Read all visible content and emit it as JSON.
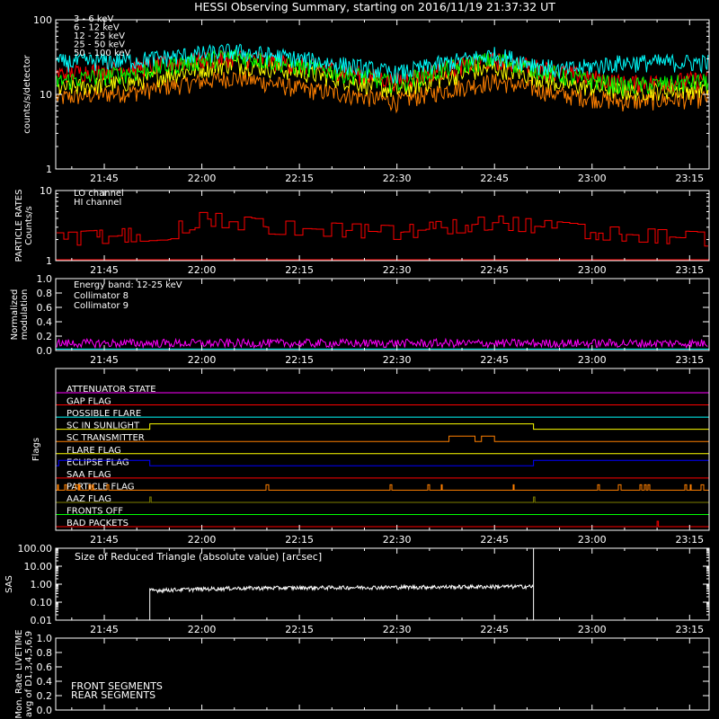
{
  "title": "HESSI Observing Summary, starting on 2016/11/19 21:37:32 UT",
  "time_ticks": [
    "21:45",
    "22:00",
    "22:15",
    "22:30",
    "22:45",
    "23:00",
    "23:15"
  ],
  "colors": {
    "bg": "#000000",
    "axis": "#ffffff"
  },
  "chart_data": [
    {
      "type": "line",
      "panel": "count-rates",
      "ylabel": "counts/s/detector",
      "yscale": "log",
      "ylim": [
        1,
        100
      ],
      "ytick_labels": [
        "1",
        "10",
        "100"
      ],
      "time_range": [
        "21:37:32",
        "23:18"
      ],
      "series": [
        {
          "name": "3 - 6 keV",
          "color": "#ff0000",
          "times": [
            "21:38",
            "21:50",
            "22:05",
            "22:15",
            "22:30",
            "22:45",
            "22:55",
            "23:05",
            "23:18"
          ],
          "values": [
            19,
            23,
            32,
            25,
            15,
            29,
            20,
            14,
            16
          ]
        },
        {
          "name": "6 - 12 keV",
          "color": "#ff8000",
          "times": [
            "21:38",
            "21:50",
            "22:05",
            "22:15",
            "22:30",
            "22:45",
            "22:55",
            "23:05",
            "23:18"
          ],
          "values": [
            9,
            11,
            17,
            12,
            8,
            15,
            10,
            8,
            9
          ]
        },
        {
          "name": "12 - 25 keV",
          "color": "#ffff00",
          "times": [
            "21:38",
            "21:50",
            "22:05",
            "22:15",
            "22:30",
            "22:45",
            "22:55",
            "23:05",
            "23:18"
          ],
          "values": [
            12,
            15,
            26,
            20,
            11,
            23,
            14,
            11,
            12
          ]
        },
        {
          "name": "25 - 50 keV",
          "color": "#00ff00",
          "times": [
            "21:38",
            "21:50",
            "22:05",
            "22:15",
            "22:30",
            "22:45",
            "22:55",
            "23:05",
            "23:18"
          ],
          "values": [
            15,
            20,
            33,
            24,
            14,
            30,
            18,
            13,
            15
          ]
        },
        {
          "name": "50 - 100 keV",
          "color": "#00ffff",
          "times": [
            "21:38",
            "21:50",
            "22:05",
            "22:15",
            "22:30",
            "22:45",
            "22:55",
            "23:05",
            "23:18"
          ],
          "values": [
            27,
            29,
            38,
            30,
            19,
            34,
            21,
            27,
            27
          ]
        }
      ]
    },
    {
      "type": "line",
      "panel": "particle-rates",
      "ylabel_lines": [
        "PARTICLE RATES",
        "Counts/s"
      ],
      "yscale": "log",
      "ylim": [
        1,
        10
      ],
      "ytick_labels": [
        "1",
        "10"
      ],
      "series": [
        {
          "name": "LO channel",
          "color": "#ff0000",
          "times": [
            "21:38",
            "21:55",
            "22:00",
            "22:10",
            "22:30",
            "22:45",
            "23:00",
            "23:18"
          ],
          "values": [
            2,
            2.5,
            4,
            3,
            2.5,
            3.5,
            2.5,
            2
          ]
        },
        {
          "name": "HI channel",
          "color": "#ff0000",
          "times": [
            "21:38",
            "23:18"
          ],
          "values": [
            1,
            1
          ]
        }
      ]
    },
    {
      "type": "line",
      "panel": "modulation",
      "ylabel_lines": [
        "Normalized",
        "modulation"
      ],
      "ylim": [
        0,
        1
      ],
      "ytick_labels": [
        "0.0",
        "0.2",
        "0.4",
        "0.6",
        "0.8",
        "1.0"
      ],
      "band_label": "Energy band: 12-25 keV",
      "series": [
        {
          "name": "Collimator 8",
          "color": "#00ffff",
          "times": [
            "21:38",
            "23:18"
          ],
          "values": [
            0.02,
            0.02
          ]
        },
        {
          "name": "Collimator 9",
          "color": "#ff00ff",
          "times": [
            "21:38",
            "23:18"
          ],
          "values": [
            0.1,
            0.1
          ]
        }
      ]
    },
    {
      "type": "line",
      "panel": "flags",
      "ylabel": "Flags",
      "flags": [
        {
          "name": "ATTENUATOR STATE",
          "color": "#ff00ff",
          "on": []
        },
        {
          "name": "GAP FLAG",
          "color": "#ff0000",
          "on": []
        },
        {
          "name": "POSSIBLE FLARE",
          "color": "#00ffff",
          "on": []
        },
        {
          "name": "SC IN SUNLIGHT",
          "color": "#ffff00",
          "on": [
            [
              "21:52",
              "22:51"
            ]
          ]
        },
        {
          "name": "SC TRANSMITTER",
          "color": "#ff8000",
          "on": [
            [
              "22:38",
              "22:42"
            ],
            [
              "22:43",
              "22:45"
            ]
          ]
        },
        {
          "name": "FLARE FLAG",
          "color": "#ffff00",
          "on": []
        },
        {
          "name": "ECLIPSE FLAG",
          "color": "#0000ff",
          "on": [
            [
              "21:38",
              "21:52"
            ],
            [
              "22:51",
              "23:18"
            ]
          ]
        },
        {
          "name": "SAA FLAG",
          "color": "#ff0000",
          "on": []
        },
        {
          "name": "PARTICLE FLAG",
          "color": "#ff8000",
          "on": [
            [
              "21:39",
              "21:50"
            ],
            [
              "22:57",
              "23:18"
            ]
          ]
        },
        {
          "name": "AAZ FLAG",
          "color": "#808000",
          "on": [
            [
              "21:52",
              "21:52"
            ],
            [
              "22:51",
              "22:51"
            ]
          ]
        },
        {
          "name": "FRONTS OFF",
          "color": "#00ff00",
          "on": []
        },
        {
          "name": "BAD PACKETS",
          "color": "#ff0000",
          "on": [
            [
              "23:10",
              "23:10"
            ]
          ]
        }
      ]
    },
    {
      "type": "line",
      "panel": "sas",
      "ylabel": "SAS",
      "yscale": "log",
      "ylim": [
        0.01,
        100
      ],
      "ytick_labels": [
        "0.01",
        "0.10",
        "1.00",
        "10.00",
        "100.00"
      ],
      "annotation": "Size of Reduced Triangle (absolute value) [arcsec]",
      "series": [
        {
          "name": "SAS",
          "color": "#ffffff",
          "times": [
            "21:52",
            "22:05",
            "22:20",
            "22:35",
            "22:50"
          ],
          "values": [
            0.45,
            0.6,
            0.65,
            0.7,
            0.75
          ]
        }
      ]
    },
    {
      "type": "line",
      "panel": "livetime",
      "ylabel_lines": [
        "Mon. Rate LIVETIME",
        "avg of D1,3,4,5,6,9"
      ],
      "ylim": [
        0,
        1
      ],
      "ytick_labels": [
        "0.0",
        "0.2",
        "0.4",
        "0.6",
        "0.8",
        "1.0"
      ],
      "series": [
        {
          "name": "FRONT SEGMENTS",
          "color": "#00ff00",
          "times": [],
          "values": []
        },
        {
          "name": "REAR SEGMENTS",
          "color": "#008000",
          "times": [],
          "values": []
        }
      ]
    }
  ]
}
